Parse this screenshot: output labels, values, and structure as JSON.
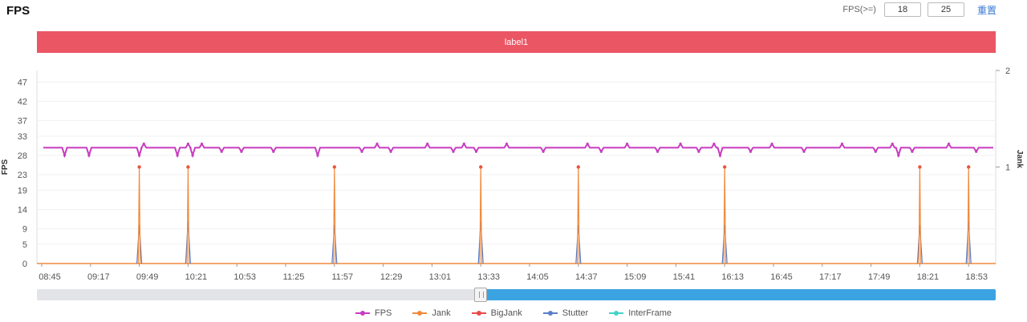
{
  "title": "FPS",
  "controls": {
    "fps_label": "FPS(>=)",
    "min_value": "18",
    "max_value": "25",
    "reset_label": "重置"
  },
  "label_bar": {
    "text": "label1",
    "color": "#eb5665"
  },
  "colors": {
    "fps": "#c83cc0",
    "jank": "#f08a3c",
    "bigjank": "#e84a4a",
    "stutter": "#5b7ec9",
    "interframe": "#44d2c8"
  },
  "chart_data": {
    "type": "line",
    "ylabel": "FPS",
    "y2label": "Jank",
    "y_ticks": [
      0,
      5,
      9,
      14,
      19,
      23,
      28,
      33,
      37,
      42,
      47
    ],
    "ylim": [
      0,
      50
    ],
    "y2_ticks": [
      1,
      2
    ],
    "y2lim": [
      0,
      2
    ],
    "x_ticks": [
      "08:45",
      "09:17",
      "09:49",
      "10:21",
      "10:53",
      "11:25",
      "11:57",
      "12:29",
      "13:01",
      "13:33",
      "14:05",
      "14:37",
      "15:09",
      "15:41",
      "16:13",
      "16:45",
      "17:17",
      "17:49",
      "18:21",
      "18:53"
    ],
    "fps_baseline": 30,
    "fps_dips": [
      {
        "t": "09:00",
        "v": 28
      },
      {
        "t": "09:16",
        "v": 28
      },
      {
        "t": "09:49",
        "v": 28
      },
      {
        "t": "09:52",
        "v": 31
      },
      {
        "t": "10:14",
        "v": 28
      },
      {
        "t": "10:21",
        "v": 31
      },
      {
        "t": "10:24",
        "v": 28
      },
      {
        "t": "10:30",
        "v": 31
      },
      {
        "t": "10:43",
        "v": 29
      },
      {
        "t": "10:56",
        "v": 29
      },
      {
        "t": "11:17",
        "v": 29
      },
      {
        "t": "11:46",
        "v": 28
      },
      {
        "t": "12:15",
        "v": 29
      },
      {
        "t": "12:25",
        "v": 31
      },
      {
        "t": "12:34",
        "v": 29
      },
      {
        "t": "12:58",
        "v": 31
      },
      {
        "t": "13:15",
        "v": 29
      },
      {
        "t": "13:22",
        "v": 31
      },
      {
        "t": "13:30",
        "v": 29
      },
      {
        "t": "13:50",
        "v": 31
      },
      {
        "t": "14:14",
        "v": 29
      },
      {
        "t": "14:43",
        "v": 31
      },
      {
        "t": "14:52",
        "v": 29
      },
      {
        "t": "15:09",
        "v": 31
      },
      {
        "t": "15:29",
        "v": 29
      },
      {
        "t": "15:44",
        "v": 31
      },
      {
        "t": "15:56",
        "v": 29
      },
      {
        "t": "16:06",
        "v": 31
      },
      {
        "t": "16:10",
        "v": 28
      },
      {
        "t": "16:30",
        "v": 29
      },
      {
        "t": "16:44",
        "v": 31
      },
      {
        "t": "17:05",
        "v": 29
      },
      {
        "t": "17:30",
        "v": 31
      },
      {
        "t": "17:52",
        "v": 29
      },
      {
        "t": "18:03",
        "v": 31
      },
      {
        "t": "18:07",
        "v": 28
      },
      {
        "t": "18:16",
        "v": 29
      },
      {
        "t": "18:40",
        "v": 31
      },
      {
        "t": "18:58",
        "v": 29
      }
    ],
    "series": [
      {
        "name": "FPS",
        "axis": "left",
        "note_values": "fps_baseline with fps_dips"
      },
      {
        "name": "Jank",
        "axis": "right",
        "points": [
          {
            "t": "09:49",
            "v": 1
          },
          {
            "t": "10:21",
            "v": 1
          },
          {
            "t": "11:57",
            "v": 1
          },
          {
            "t": "13:33",
            "v": 1
          },
          {
            "t": "14:37",
            "v": 1
          },
          {
            "t": "16:13",
            "v": 1
          },
          {
            "t": "18:21",
            "v": 1
          },
          {
            "t": "18:53",
            "v": 1
          }
        ]
      },
      {
        "name": "BigJank",
        "axis": "right",
        "points": []
      },
      {
        "name": "Stutter",
        "axis": "left",
        "points": [
          {
            "t": "09:49",
            "v": 10
          },
          {
            "t": "10:21",
            "v": 11
          },
          {
            "t": "11:57",
            "v": 10
          },
          {
            "t": "13:33",
            "v": 11
          },
          {
            "t": "14:37",
            "v": 10
          },
          {
            "t": "16:13",
            "v": 10
          },
          {
            "t": "18:21",
            "v": 10
          },
          {
            "t": "18:53",
            "v": 11
          }
        ]
      },
      {
        "name": "InterFrame",
        "axis": "left",
        "points": []
      }
    ],
    "legend": [
      "FPS",
      "Jank",
      "BigJank",
      "Stutter",
      "InterFrame"
    ],
    "legend_position": "bottom",
    "zoom_slider": {
      "start_percent": 46,
      "end_percent": 100
    }
  }
}
